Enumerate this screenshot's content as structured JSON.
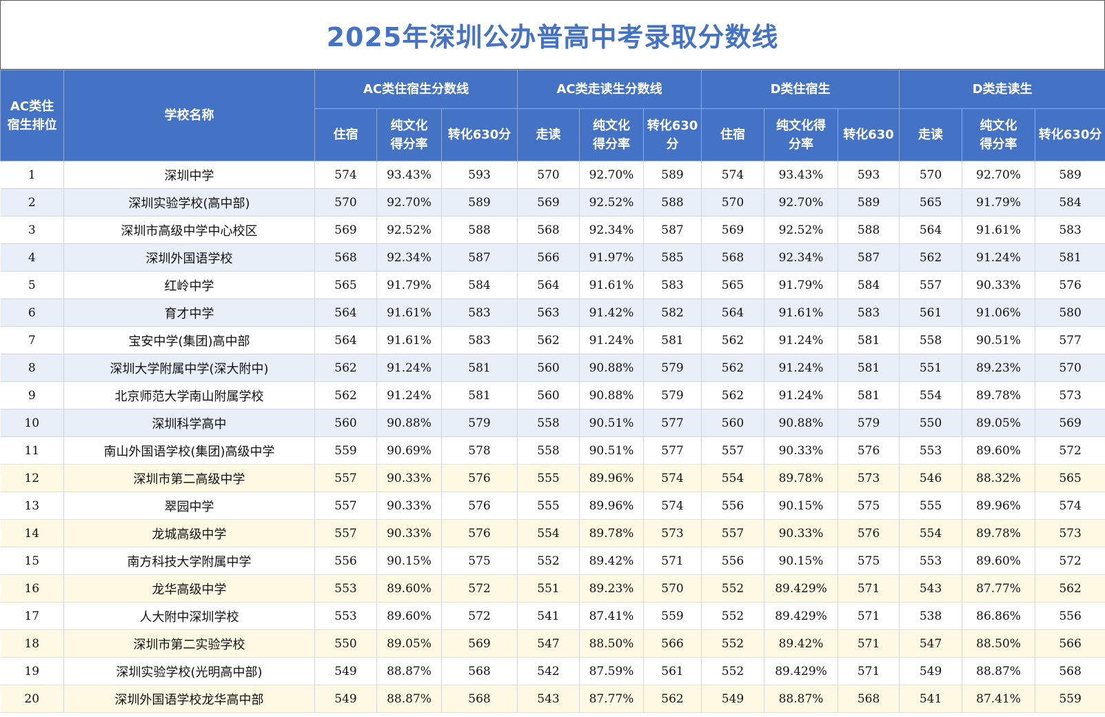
{
  "title": "2025年深圳公办普高中考录取分数线",
  "header": {
    "rank": "AC类住宿生排位",
    "school": "学校名称",
    "groups": [
      "AC类住宿生分数线",
      "AC类走读生分数线",
      "D类住宿生",
      "D类走读生"
    ],
    "sub": [
      "住宿",
      "纯文化得分率",
      "转化630分",
      "走读",
      "纯文化得分率",
      "转化630分",
      "住宿",
      "纯文化得分率",
      "转化630",
      "走读",
      "纯文化得分率",
      "转化630分"
    ]
  },
  "rows": [
    {
      "rank": "1",
      "name": "深圳中学",
      "v": [
        "574",
        "93.43%",
        "593",
        "570",
        "92.70%",
        "589",
        "574",
        "93.43%",
        "593",
        "570",
        "92.70%",
        "589"
      ]
    },
    {
      "rank": "2",
      "name": "深圳实验学校(高中部)",
      "v": [
        "570",
        "92.70%",
        "589",
        "569",
        "92.52%",
        "588",
        "570",
        "92.70%",
        "589",
        "565",
        "91.79%",
        "584"
      ]
    },
    {
      "rank": "3",
      "name": "深圳市高级中学中心校区",
      "v": [
        "569",
        "92.52%",
        "588",
        "568",
        "92.34%",
        "587",
        "569",
        "92.52%",
        "588",
        "564",
        "91.61%",
        "583"
      ]
    },
    {
      "rank": "4",
      "name": "深圳外国语学校",
      "v": [
        "568",
        "92.34%",
        "587",
        "566",
        "91.97%",
        "585",
        "568",
        "92.34%",
        "587",
        "562",
        "91.24%",
        "581"
      ]
    },
    {
      "rank": "5",
      "name": "红岭中学",
      "v": [
        "565",
        "91.79%",
        "584",
        "564",
        "91.61%",
        "583",
        "565",
        "91.79%",
        "584",
        "557",
        "90.33%",
        "576"
      ]
    },
    {
      "rank": "6",
      "name": "育才中学",
      "v": [
        "564",
        "91.61%",
        "583",
        "563",
        "91.42%",
        "582",
        "564",
        "91.61%",
        "583",
        "561",
        "91.06%",
        "580"
      ]
    },
    {
      "rank": "7",
      "name": "宝安中学(集团)高中部",
      "v": [
        "564",
        "91.61%",
        "583",
        "562",
        "91.24%",
        "581",
        "562",
        "91.24%",
        "581",
        "558",
        "90.51%",
        "577"
      ]
    },
    {
      "rank": "8",
      "name": "深圳大学附属中学(深大附中)",
      "v": [
        "562",
        "91.24%",
        "581",
        "560",
        "90.88%",
        "579",
        "562",
        "91.24%",
        "581",
        "551",
        "89.23%",
        "570"
      ]
    },
    {
      "rank": "9",
      "name": "北京师范大学南山附属学校",
      "v": [
        "562",
        "91.24%",
        "581",
        "560",
        "90.88%",
        "579",
        "562",
        "91.24%",
        "581",
        "554",
        "89.78%",
        "573"
      ]
    },
    {
      "rank": "10",
      "name": "深圳科学高中",
      "v": [
        "560",
        "90.88%",
        "579",
        "558",
        "90.51%",
        "577",
        "560",
        "90.88%",
        "579",
        "550",
        "89.05%",
        "569"
      ]
    },
    {
      "rank": "11",
      "name": "南山外国语学校(集团)高级中学",
      "v": [
        "559",
        "90.69%",
        "578",
        "558",
        "90.51%",
        "577",
        "557",
        "90.33%",
        "576",
        "553",
        "89.60%",
        "572"
      ]
    },
    {
      "rank": "12",
      "name": "深圳市第二高级中学",
      "v": [
        "557",
        "90.33%",
        "576",
        "555",
        "89.96%",
        "574",
        "554",
        "89.78%",
        "573",
        "546",
        "88.32%",
        "565"
      ]
    },
    {
      "rank": "13",
      "name": "翠园中学",
      "v": [
        "557",
        "90.33%",
        "576",
        "555",
        "89.96%",
        "574",
        "556",
        "90.15%",
        "575",
        "555",
        "89.96%",
        "574"
      ]
    },
    {
      "rank": "14",
      "name": "龙城高级中学",
      "v": [
        "557",
        "90.33%",
        "576",
        "554",
        "89.78%",
        "573",
        "557",
        "90.33%",
        "576",
        "554",
        "89.78%",
        "573"
      ]
    },
    {
      "rank": "15",
      "name": "南方科技大学附属中学",
      "v": [
        "556",
        "90.15%",
        "575",
        "552",
        "89.42%",
        "571",
        "556",
        "90.15%",
        "575",
        "553",
        "89.60%",
        "572"
      ]
    },
    {
      "rank": "16",
      "name": "龙华高级中学",
      "v": [
        "553",
        "89.60%",
        "572",
        "551",
        "89.23%",
        "570",
        "552",
        "89.429%",
        "571",
        "543",
        "87.77%",
        "562"
      ]
    },
    {
      "rank": "17",
      "name": "人大附中深圳学校",
      "v": [
        "553",
        "89.60%",
        "572",
        "541",
        "87.41%",
        "559",
        "552",
        "89.429%",
        "571",
        "538",
        "86.86%",
        "556"
      ]
    },
    {
      "rank": "18",
      "name": "深圳市第二实验学校",
      "v": [
        "550",
        "89.05%",
        "569",
        "547",
        "88.50%",
        "566",
        "552",
        "89.42%",
        "571",
        "547",
        "88.50%",
        "566"
      ]
    },
    {
      "rank": "19",
      "name": "深圳实验学校(光明高中部)",
      "v": [
        "549",
        "88.87%",
        "568",
        "542",
        "87.59%",
        "561",
        "552",
        "89.429%",
        "571",
        "549",
        "88.87%",
        "568"
      ]
    },
    {
      "rank": "20",
      "name": "深圳外国语学校龙华高中部",
      "v": [
        "549",
        "88.87%",
        "568",
        "543",
        "87.77%",
        "562",
        "549",
        "88.87%",
        "568",
        "541",
        "87.41%",
        "559"
      ]
    }
  ]
}
